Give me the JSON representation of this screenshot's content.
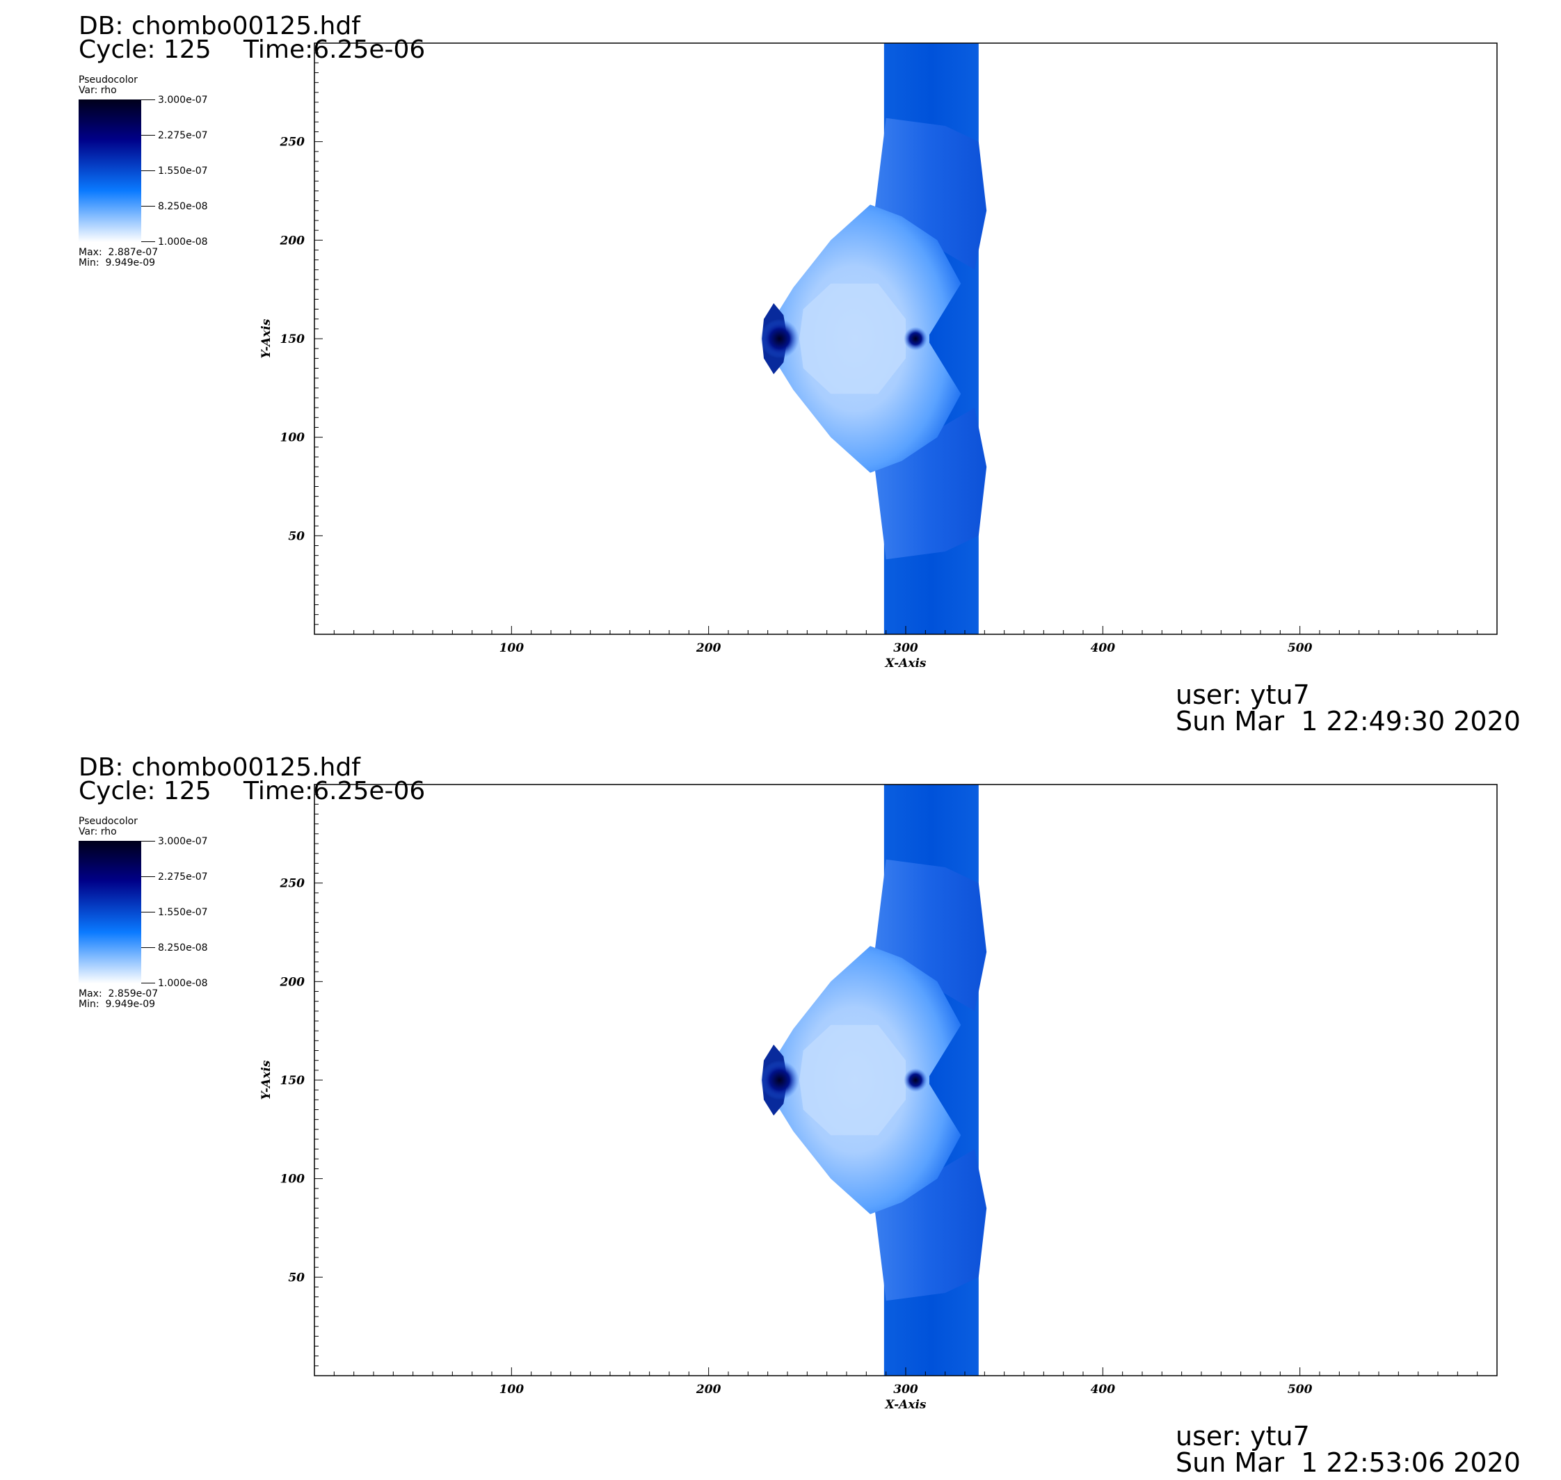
{
  "panels": [
    {
      "db": "DB: chombo00125.hdf",
      "cycle": "Cycle: 125",
      "time": "Time:6.25e-06",
      "legend": {
        "title": "Pseudocolor",
        "var": "Var: rho",
        "ticks": [
          "3.000e-07",
          "2.275e-07",
          "1.550e-07",
          "8.250e-08",
          "1.000e-08"
        ],
        "max": "Max:  2.887e-07",
        "min": "Min:  9.949e-09"
      },
      "user": "user: ytu7",
      "date": "Sun Mar  1 22:49:30 2020"
    },
    {
      "db": "DB: chombo00125.hdf",
      "cycle": "Cycle: 125",
      "time": "Time:6.25e-06",
      "legend": {
        "title": "Pseudocolor",
        "var": "Var: rho",
        "ticks": [
          "3.000e-07",
          "2.275e-07",
          "1.550e-07",
          "8.250e-08",
          "1.000e-08"
        ],
        "max": "Max:  2.859e-07",
        "min": "Min:  9.949e-09"
      },
      "user": "user: ytu7",
      "date": "Sun Mar  1 22:53:06 2020"
    }
  ],
  "chart_data": [
    {
      "type": "heatmap",
      "variable": "rho",
      "xlabel": "X-Axis",
      "ylabel": "Y-Axis",
      "xlim": [
        0,
        600
      ],
      "ylim": [
        0,
        300
      ],
      "x_ticks": [
        100,
        200,
        300,
        400,
        500
      ],
      "y_ticks": [
        50,
        100,
        150,
        200,
        250
      ],
      "colorscale": [
        "#ffffff",
        "#0a7aff",
        "#000088",
        "#00001a"
      ],
      "colorbar_range": [
        1e-08,
        3e-07
      ],
      "features": {
        "slab_x_range": [
          289,
          337
        ],
        "slab_color": "#0050dc",
        "bubble_y_range": [
          35,
          265
        ],
        "bubble_x_range": [
          228,
          340
        ]
      }
    },
    {
      "type": "heatmap",
      "variable": "rho",
      "xlabel": "X-Axis",
      "ylabel": "Y-Axis",
      "xlim": [
        0,
        600
      ],
      "ylim": [
        0,
        300
      ],
      "x_ticks": [
        100,
        200,
        300,
        400,
        500
      ],
      "y_ticks": [
        50,
        100,
        150,
        200,
        250
      ],
      "colorscale": [
        "#ffffff",
        "#0a7aff",
        "#000088",
        "#00001a"
      ],
      "colorbar_range": [
        1e-08,
        3e-07
      ],
      "features": {
        "slab_x_range": [
          289,
          337
        ],
        "slab_color": "#0050dc",
        "bubble_y_range": [
          35,
          265
        ],
        "bubble_x_range": [
          228,
          340
        ]
      }
    }
  ]
}
